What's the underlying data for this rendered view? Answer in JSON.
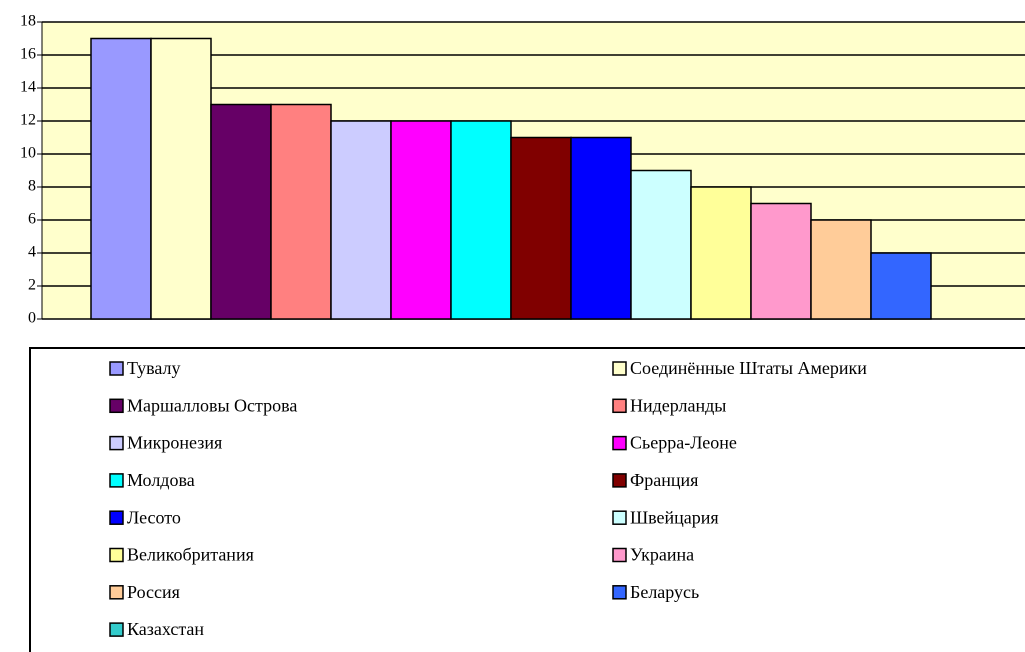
{
  "chart_data": {
    "type": "bar",
    "categories": [
      null
    ],
    "series": [
      {
        "name": "Тувалу",
        "color": "#9999ff",
        "values": [
          17
        ]
      },
      {
        "name": "Соединённые Штаты Америки",
        "color": "#ffffcc",
        "values": [
          17
        ]
      },
      {
        "name": "Маршалловы Острова",
        "color": "#660066",
        "values": [
          13
        ]
      },
      {
        "name": "Нидерланды",
        "color": "#ff8080",
        "values": [
          13
        ]
      },
      {
        "name": "Микронезия",
        "color": "#ccccff",
        "values": [
          12
        ]
      },
      {
        "name": "Сьерра-Леоне",
        "color": "#ff00ff",
        "values": [
          12
        ]
      },
      {
        "name": "Молдова",
        "color": "#00ffff",
        "values": [
          12
        ]
      },
      {
        "name": "Франция",
        "color": "#800000",
        "values": [
          11
        ]
      },
      {
        "name": "Лесото",
        "color": "#0000ff",
        "values": [
          11
        ]
      },
      {
        "name": "Швейцария",
        "color": "#ccffff",
        "values": [
          9
        ]
      },
      {
        "name": "Великобритания",
        "color": "#ffff99",
        "values": [
          8
        ]
      },
      {
        "name": "Украина",
        "color": "#ff99cc",
        "values": [
          7
        ]
      },
      {
        "name": "Россия",
        "color": "#ffcc99",
        "values": [
          6
        ]
      },
      {
        "name": "Беларусь",
        "color": "#3366ff",
        "values": [
          4
        ]
      },
      {
        "name": "Казахстан",
        "color": "#33cccc",
        "values": [
          0
        ]
      }
    ],
    "ylim": [
      0,
      18
    ],
    "yticks": [
      0,
      2,
      4,
      6,
      8,
      10,
      12,
      14,
      16,
      18
    ],
    "grid": true,
    "legend": "bottom",
    "plot_background": "#ffffcc"
  }
}
